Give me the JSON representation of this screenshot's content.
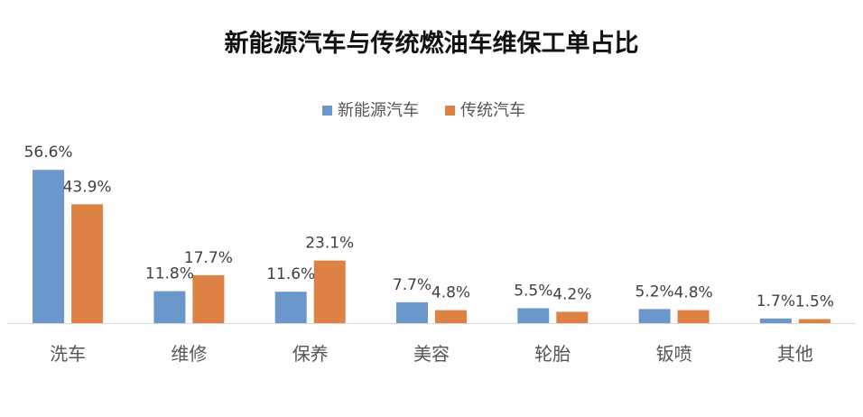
{
  "chart_data": {
    "type": "bar",
    "title": "新能源汽车与传统燃油车维保工单占比",
    "xlabel": "",
    "ylabel": "",
    "ylim": [
      0,
      60
    ],
    "grid": false,
    "legend_placement": "top-center",
    "categories": [
      "洗车",
      "维修",
      "保养",
      "美容",
      "轮胎",
      "钣喷",
      "其他"
    ],
    "series": [
      {
        "name": "新能源汽车",
        "color": "#6b97cb",
        "values": [
          56.6,
          11.8,
          11.6,
          7.7,
          5.5,
          5.2,
          1.7
        ],
        "labels": [
          "56.6%",
          "11.8%",
          "11.6%",
          "7.7%",
          "5.5%",
          "5.2%",
          "1.7%"
        ]
      },
      {
        "name": "传统汽车",
        "color": "#dd8244",
        "values": [
          43.9,
          17.7,
          23.1,
          4.8,
          4.2,
          4.8,
          1.5
        ],
        "labels": [
          "43.9%",
          "17.7%",
          "23.1%",
          "4.8%",
          "4.2%",
          "4.8%",
          "1.5%"
        ]
      }
    ]
  }
}
